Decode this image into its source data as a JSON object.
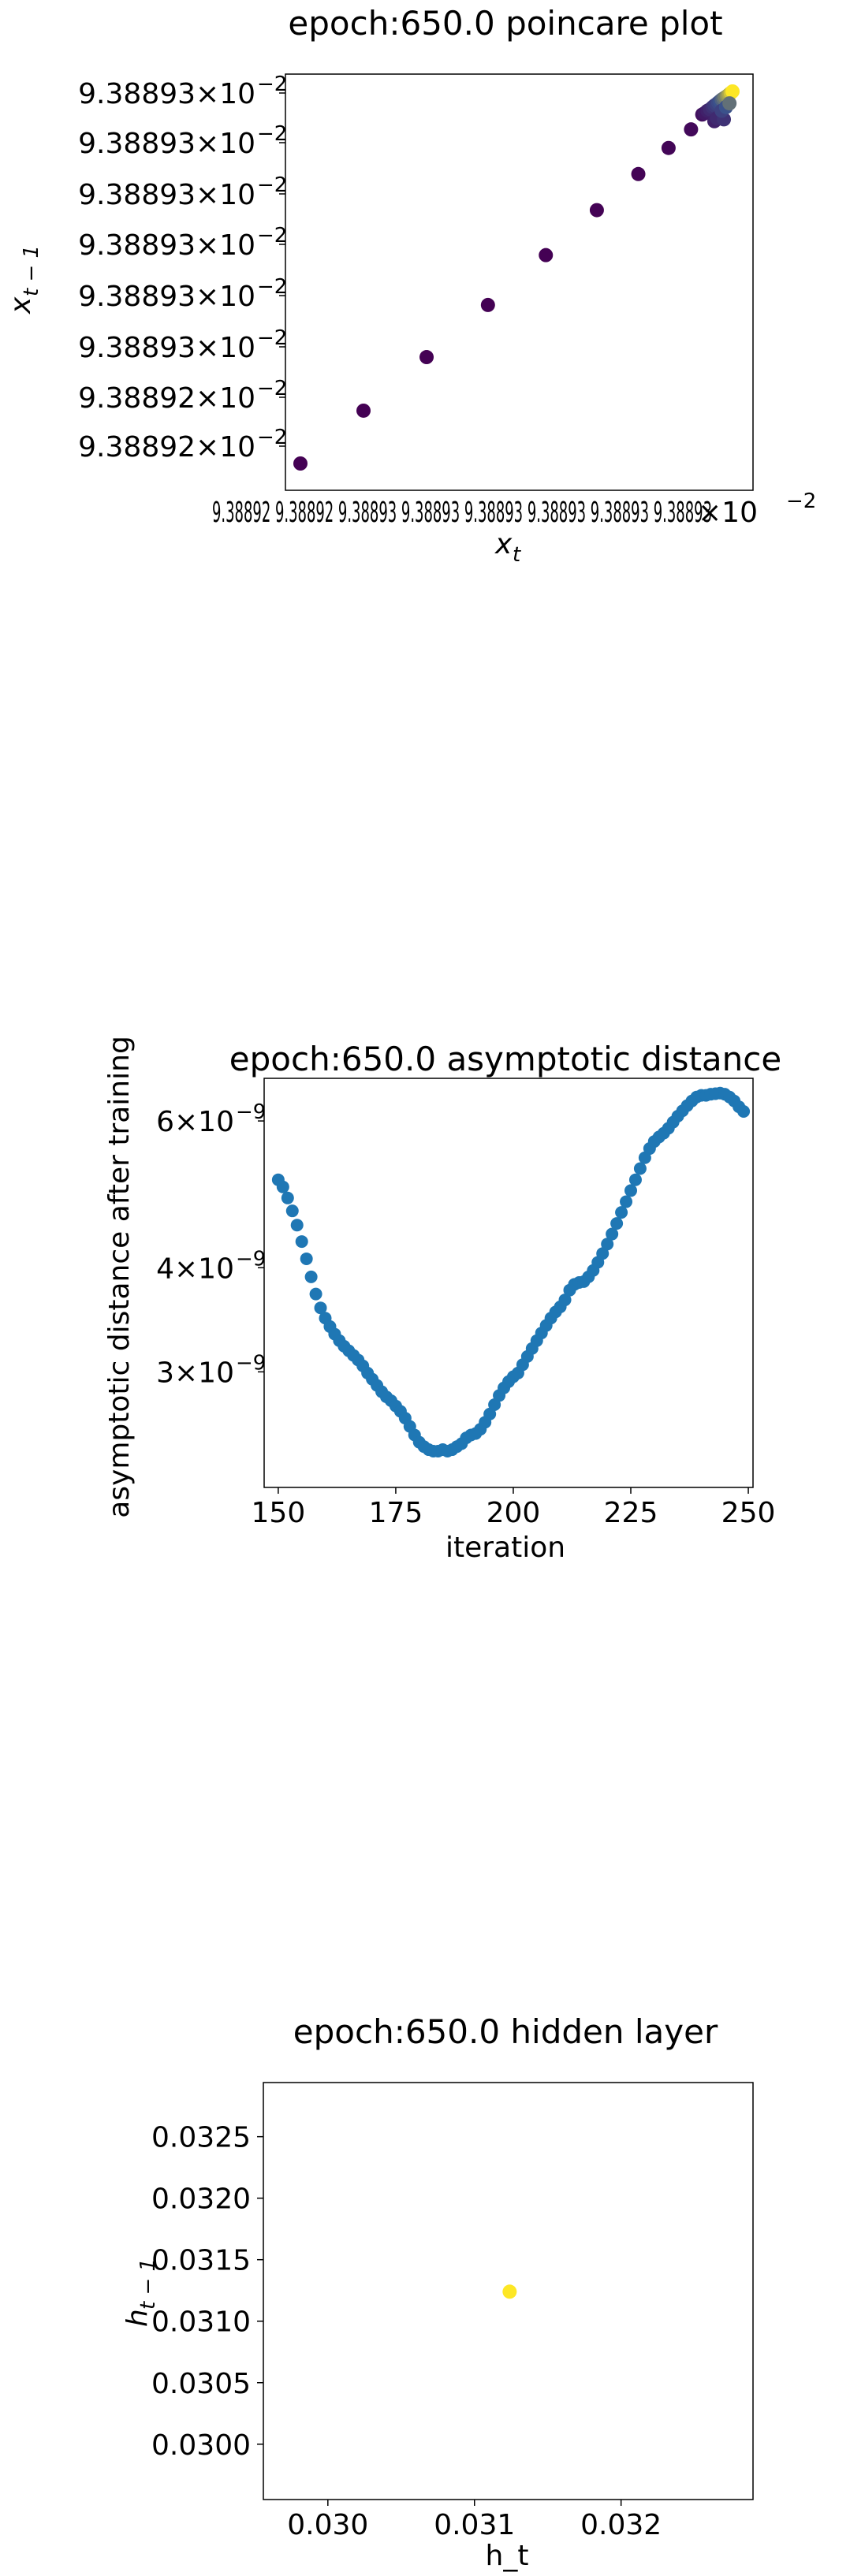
{
  "colors": {
    "viridis_start": "#440154",
    "viridis_mid": "#3b528b",
    "viridis_end": "#fde725",
    "series_blue": "#1f77b4",
    "axis_black": "#000000"
  },
  "chart_data": [
    {
      "type": "scatter",
      "title": "epoch:650.0 poincare plot",
      "xlabel_base": "x",
      "xlabel_sub": "t",
      "ylabel_base": "x",
      "ylabel_sub": "t − 1",
      "colormap": "viridis",
      "yticks": [
        {
          "mant": "9.38892",
          "exp": "−2"
        },
        {
          "mant": "9.38892",
          "exp": "−2"
        },
        {
          "mant": "9.38893",
          "exp": "−2"
        },
        {
          "mant": "9.38893",
          "exp": "−2"
        },
        {
          "mant": "9.38893",
          "exp": "−2"
        },
        {
          "mant": "9.38893",
          "exp": "−2"
        },
        {
          "mant": "9.38893",
          "exp": "−2"
        },
        {
          "mant": "9.38893",
          "exp": "−2"
        }
      ],
      "xtick_text": "9.38892  9.38892  9.38893  9.38893  9.38893  9.38893  9.38893  9.38893",
      "x_offset_label": {
        "base": "×10",
        "exp": "−2"
      },
      "points": [
        {
          "x": 0.0,
          "y": 0.0,
          "c": 0.0
        },
        {
          "x": 0.146,
          "y": 0.142,
          "c": 0.0
        },
        {
          "x": 0.292,
          "y": 0.286,
          "c": 0.0
        },
        {
          "x": 0.434,
          "y": 0.426,
          "c": 0.0
        },
        {
          "x": 0.568,
          "y": 0.56,
          "c": 0.0
        },
        {
          "x": 0.686,
          "y": 0.681,
          "c": 0.01
        },
        {
          "x": 0.782,
          "y": 0.778,
          "c": 0.02
        },
        {
          "x": 0.852,
          "y": 0.848,
          "c": 0.03
        },
        {
          "x": 0.904,
          "y": 0.898,
          "c": 0.05
        },
        {
          "x": 0.93,
          "y": 0.938,
          "c": 0.1
        },
        {
          "x": 0.936,
          "y": 0.942,
          "c": 0.15
        },
        {
          "x": 0.942,
          "y": 0.948,
          "c": 0.2
        },
        {
          "x": 0.948,
          "y": 0.952,
          "c": 0.25
        },
        {
          "x": 0.954,
          "y": 0.958,
          "c": 0.3
        },
        {
          "x": 0.958,
          "y": 0.962,
          "c": 0.35
        },
        {
          "x": 0.963,
          "y": 0.966,
          "c": 0.4
        },
        {
          "x": 0.967,
          "y": 0.97,
          "c": 0.45
        },
        {
          "x": 0.971,
          "y": 0.974,
          "c": 0.5
        },
        {
          "x": 0.975,
          "y": 0.978,
          "c": 0.55
        },
        {
          "x": 0.979,
          "y": 0.981,
          "c": 0.6
        },
        {
          "x": 0.983,
          "y": 0.984,
          "c": 0.65
        },
        {
          "x": 0.987,
          "y": 0.987,
          "c": 0.7
        },
        {
          "x": 0.99,
          "y": 0.99,
          "c": 0.75
        },
        {
          "x": 0.993,
          "y": 0.993,
          "c": 0.8
        },
        {
          "x": 0.996,
          "y": 0.996,
          "c": 0.88
        },
        {
          "x": 1.0,
          "y": 1.0,
          "c": 1.0
        },
        {
          "x": 0.958,
          "y": 0.92,
          "c": 0.2
        },
        {
          "x": 0.964,
          "y": 0.928,
          "c": 0.25
        },
        {
          "x": 0.98,
          "y": 0.925,
          "c": 0.3
        },
        {
          "x": 0.975,
          "y": 0.948,
          "c": 0.4
        },
        {
          "x": 0.985,
          "y": 0.958,
          "c": 0.5
        },
        {
          "x": 0.993,
          "y": 0.968,
          "c": 0.6
        }
      ]
    },
    {
      "type": "scatter",
      "title": "epoch:650.0 asymptotic distance",
      "xlabel": "iteration",
      "ylabel": "asymptotic distance after training",
      "log_y": true,
      "xlim": [
        147,
        251
      ],
      "ylim": [
        2.18e-09,
        6.75e-09
      ],
      "xticks": [
        "150",
        "175",
        "200",
        "225",
        "250"
      ],
      "yticks": [
        {
          "mant": "3",
          "exp": "−9",
          "value": 3e-09
        },
        {
          "mant": "4",
          "exp": "−9",
          "value": 4e-09
        },
        {
          "mant": "6",
          "exp": "−9",
          "value": 6e-09
        }
      ],
      "x_start": 150,
      "y": [
        5.1e-09,
        5e-09,
        4.85e-09,
        4.68e-09,
        4.5e-09,
        4.3e-09,
        4.1e-09,
        3.9e-09,
        3.72e-09,
        3.58e-09,
        3.48e-09,
        3.4e-09,
        3.33e-09,
        3.27e-09,
        3.22e-09,
        3.18e-09,
        3.14e-09,
        3.1e-09,
        3.05e-09,
        2.99e-09,
        2.94e-09,
        2.89e-09,
        2.84e-09,
        2.8e-09,
        2.77e-09,
        2.73e-09,
        2.69e-09,
        2.64e-09,
        2.58e-09,
        2.52e-09,
        2.47e-09,
        2.44e-09,
        2.42e-09,
        2.41e-09,
        2.41e-09,
        2.42e-09,
        2.41e-09,
        2.42e-09,
        2.44e-09,
        2.46e-09,
        2.5e-09,
        2.52e-09,
        2.53e-09,
        2.56e-09,
        2.61e-09,
        2.67e-09,
        2.74e-09,
        2.81e-09,
        2.87e-09,
        2.92e-09,
        2.96e-09,
        2.99e-09,
        3.06e-09,
        3.13e-09,
        3.2e-09,
        3.27e-09,
        3.34e-09,
        3.41e-09,
        3.48e-09,
        3.54e-09,
        3.59e-09,
        3.66e-09,
        3.76e-09,
        3.82e-09,
        3.84e-09,
        3.85e-09,
        3.9e-09,
        3.97e-09,
        4.06e-09,
        4.16e-09,
        4.27e-09,
        4.39e-09,
        4.52e-09,
        4.66e-09,
        4.8e-09,
        4.95e-09,
        5.1e-09,
        5.26e-09,
        5.42e-09,
        5.56e-09,
        5.67e-09,
        5.74e-09,
        5.8e-09,
        5.88e-09,
        5.98e-09,
        6.08e-09,
        6.17e-09,
        6.26e-09,
        6.34e-09,
        6.41e-09,
        6.44e-09,
        6.44e-09,
        6.46e-09,
        6.47e-09,
        6.48e-09,
        6.46e-09,
        6.41e-09,
        6.34e-09,
        6.24e-09,
        6.16e-09
      ],
      "color": "#1f77b4"
    },
    {
      "type": "scatter",
      "title": "epoch:650.0 hidden layer",
      "xlabel": "h_t",
      "ylabel_base": "h",
      "ylabel_sub": "t − 1",
      "xlim": [
        0.02956,
        0.0329
      ],
      "ylim": [
        0.02955,
        0.03294
      ],
      "xticks": [
        "0.030",
        "0.031",
        "0.032"
      ],
      "xtick_values": [
        0.03,
        0.031,
        0.032
      ],
      "yticks": [
        "0.0300",
        "0.0305",
        "0.0310",
        "0.0315",
        "0.0320",
        "0.0325"
      ],
      "ytick_values": [
        0.03,
        0.0305,
        0.031,
        0.0315,
        0.032,
        0.0325
      ],
      "points": [
        {
          "x": 0.03124,
          "y": 0.03124
        }
      ],
      "color": "#fde725"
    }
  ]
}
